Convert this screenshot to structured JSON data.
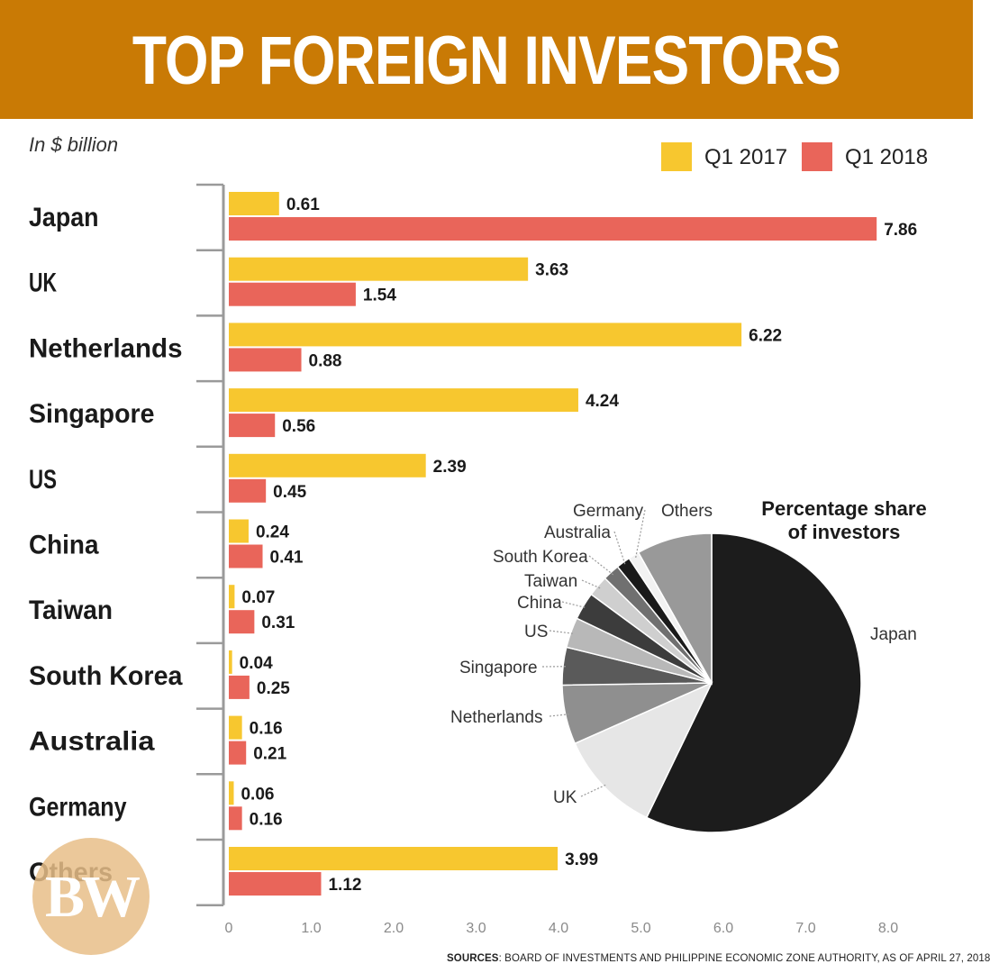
{
  "header": {
    "title": "TOP FOREIGN INVESTORS"
  },
  "unit_label": "In $ billion",
  "legend": [
    {
      "label": "Q1 2017",
      "color": "#f7c72f"
    },
    {
      "label": "Q1 2018",
      "color": "#e9655a"
    }
  ],
  "source": {
    "prefix": "SOURCES",
    "text": ": BOARD OF INVESTMENTS AND PHILIPPINE ECONOMIC ZONE AUTHORITY, AS OF APRIL 27, 2018"
  },
  "logo": {
    "text": "BW"
  },
  "chart_data": [
    {
      "type": "bar",
      "orientation": "horizontal",
      "title": "TOP FOREIGN INVESTORS",
      "unit": "In $ billion",
      "categories": [
        "Japan",
        "UK",
        "Netherlands",
        "Singapore",
        "US",
        "China",
        "Taiwan",
        "South Korea",
        "Australia",
        "Germany",
        "Others"
      ],
      "series": [
        {
          "name": "Q1 2017",
          "color": "#f7c72f",
          "values": [
            0.61,
            3.63,
            6.22,
            4.24,
            2.39,
            0.24,
            0.07,
            0.04,
            0.16,
            0.06,
            3.99
          ],
          "labels": [
            "0.61",
            "3.63",
            "6.22",
            "4.24",
            "2.39",
            "0.24",
            "0.07",
            "0.04",
            "0.16",
            "0.06",
            "3.99"
          ]
        },
        {
          "name": "Q1 2018",
          "color": "#e9655a",
          "values": [
            7.86,
            1.54,
            0.88,
            0.56,
            0.45,
            0.41,
            0.31,
            0.25,
            0.21,
            0.16,
            1.12
          ],
          "labels": [
            "7.86",
            "1.54",
            "0.88",
            "0.56",
            "0.45",
            "0.41",
            "0.31",
            "0.25",
            "0.21",
            "0.16",
            "1.12"
          ]
        }
      ],
      "xlim": [
        0,
        8
      ],
      "xticks": [
        "0",
        "1.0",
        "2.0",
        "3.0",
        "4.0",
        "5.0",
        "6.0",
        "7.0",
        "8.0"
      ],
      "legend_position": "top-right"
    },
    {
      "type": "pie",
      "title_lines": [
        "Percentage share",
        "of investors"
      ],
      "labels": [
        "Japan",
        "UK",
        "Netherlands",
        "Singapore",
        "US",
        "China",
        "Taiwan",
        "South Korea",
        "Australia",
        "Germany",
        "Others"
      ],
      "values": [
        7.86,
        1.54,
        0.88,
        0.56,
        0.45,
        0.41,
        0.31,
        0.25,
        0.21,
        0.16,
        1.12
      ],
      "colors": [
        "#1c1c1c",
        "#e6e6e6",
        "#8f8f8f",
        "#5a5a5a",
        "#b8b8b8",
        "#3c3c3c",
        "#cfcfcf",
        "#707070",
        "#1a1a1a",
        "#f2f2f2",
        "#999999"
      ]
    }
  ]
}
